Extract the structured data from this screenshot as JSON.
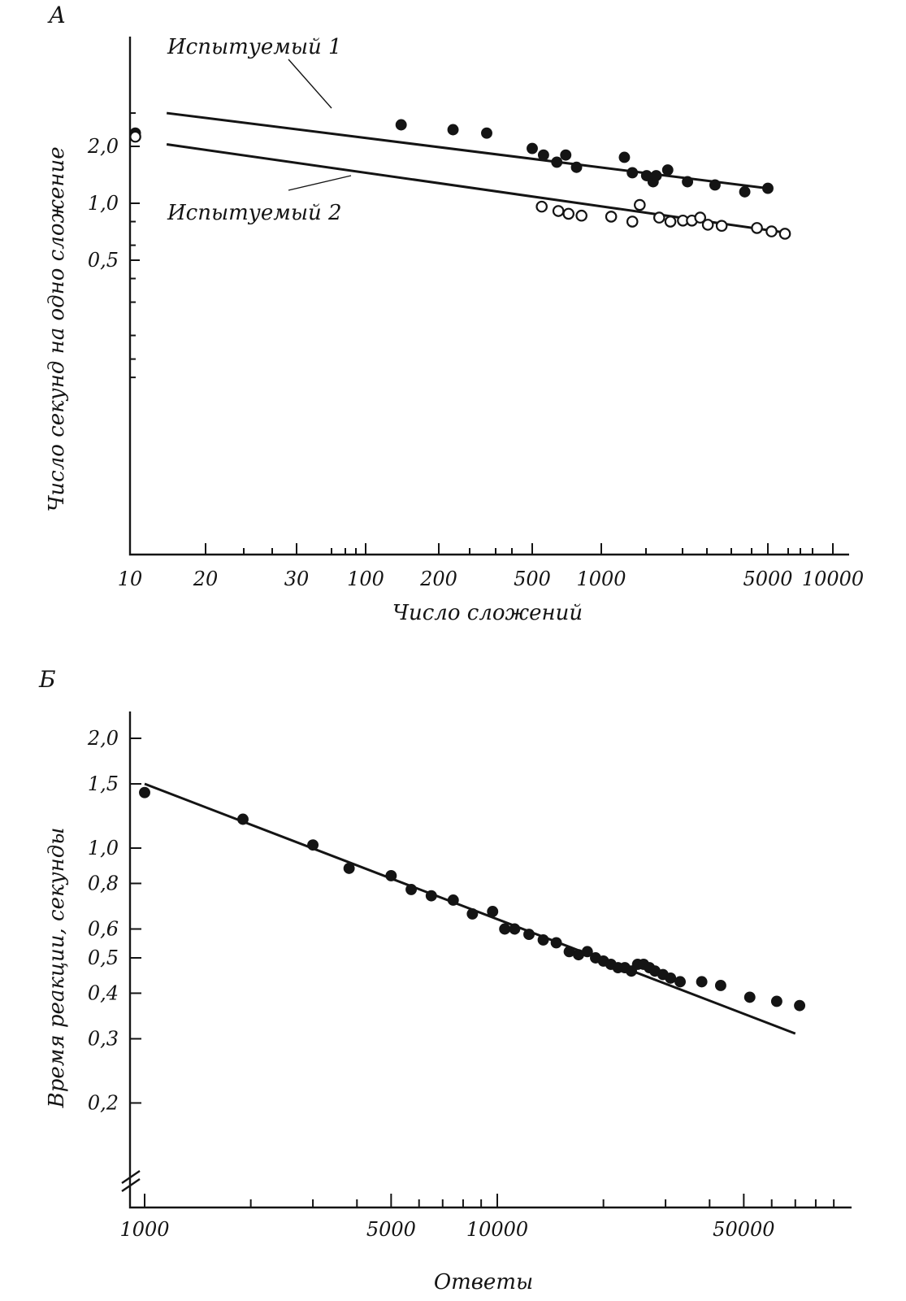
{
  "chart_data": [
    {
      "panel": "A",
      "type": "scatter",
      "xscale": "log",
      "yscale": "log",
      "xlabel": "Число сложений",
      "ylabel": "Число секунд на одно сложение",
      "x_tick_labels": [
        "10",
        "20",
        "30",
        "100",
        "200",
        "500",
        "1000",
        "5000",
        "10000"
      ],
      "y_tick_labels": [
        "2,0",
        "1,0",
        "0,5"
      ],
      "grid": false,
      "series": [
        {
          "name": "Испытуемый 1",
          "marker": "filled",
          "points": [
            [
              10.5,
              2.35
            ],
            [
              140,
              2.6
            ],
            [
              230,
              2.45
            ],
            [
              320,
              2.35
            ],
            [
              500,
              1.95
            ],
            [
              560,
              1.8
            ],
            [
              640,
              1.65
            ],
            [
              700,
              1.8
            ],
            [
              780,
              1.55
            ],
            [
              1250,
              1.75
            ],
            [
              1350,
              1.45
            ],
            [
              1550,
              1.4
            ],
            [
              1650,
              1.3
            ],
            [
              1700,
              1.4
            ],
            [
              1900,
              1.5
            ],
            [
              2300,
              1.3
            ],
            [
              3000,
              1.25
            ],
            [
              4000,
              1.15
            ],
            [
              5000,
              1.2
            ]
          ],
          "fit": [
            [
              14,
              3.0
            ],
            [
              5000,
              1.2
            ]
          ]
        },
        {
          "name": "Испытуемый 2",
          "marker": "open",
          "points": [
            [
              10.5,
              2.25
            ],
            [
              550,
              0.96
            ],
            [
              650,
              0.91
            ],
            [
              720,
              0.88
            ],
            [
              820,
              0.86
            ],
            [
              1100,
              0.85
            ],
            [
              1350,
              0.8
            ],
            [
              1450,
              0.98
            ],
            [
              1750,
              0.84
            ],
            [
              1950,
              0.8
            ],
            [
              2200,
              0.81
            ],
            [
              2400,
              0.81
            ],
            [
              2600,
              0.84
            ],
            [
              2800,
              0.77
            ],
            [
              3200,
              0.76
            ],
            [
              4500,
              0.74
            ],
            [
              5200,
              0.71
            ],
            [
              6000,
              0.69
            ]
          ],
          "fit": [
            [
              14,
              2.05
            ],
            [
              6000,
              0.7
            ]
          ]
        }
      ]
    },
    {
      "panel": "Б",
      "type": "scatter",
      "xscale": "log",
      "yscale": "log",
      "xlabel": "Ответы",
      "ylabel": "Время реакции, секунды",
      "x_tick_labels": [
        "1000",
        "5000",
        "10000",
        "50000"
      ],
      "y_tick_labels": [
        "2,0",
        "1,5",
        "1,0",
        "0,8",
        "0,6",
        "0,5",
        "0,4",
        "0,3",
        "0,2"
      ],
      "grid": false,
      "series": [
        {
          "marker": "filled",
          "points": [
            [
              1000,
              1.42
            ],
            [
              1900,
              1.2
            ],
            [
              3000,
              1.02
            ],
            [
              3800,
              0.88
            ],
            [
              5000,
              0.84
            ],
            [
              5700,
              0.77
            ],
            [
              6500,
              0.74
            ],
            [
              7500,
              0.72
            ],
            [
              8500,
              0.66
            ],
            [
              9700,
              0.67
            ],
            [
              10500,
              0.6
            ],
            [
              11200,
              0.6
            ],
            [
              12300,
              0.58
            ],
            [
              13500,
              0.56
            ],
            [
              14700,
              0.55
            ],
            [
              16000,
              0.52
            ],
            [
              17000,
              0.51
            ],
            [
              18000,
              0.52
            ],
            [
              19000,
              0.5
            ],
            [
              20000,
              0.49
            ],
            [
              21000,
              0.48
            ],
            [
              22000,
              0.47
            ],
            [
              23000,
              0.47
            ],
            [
              24000,
              0.46
            ],
            [
              25000,
              0.48
            ],
            [
              26000,
              0.48
            ],
            [
              27000,
              0.47
            ],
            [
              28000,
              0.46
            ],
            [
              29500,
              0.45
            ],
            [
              31000,
              0.44
            ],
            [
              33000,
              0.43
            ],
            [
              38000,
              0.43
            ],
            [
              43000,
              0.42
            ],
            [
              52000,
              0.39
            ],
            [
              62000,
              0.38
            ],
            [
              72000,
              0.37
            ]
          ],
          "fit": [
            [
              1000,
              1.5
            ],
            [
              70000,
              0.31
            ]
          ]
        }
      ]
    }
  ],
  "panels": {
    "a": {
      "letter": "А",
      "label_line1": "Испытуемый 1",
      "label_line2": "Испытуемый 2"
    },
    "b": {
      "letter": "Б"
    }
  }
}
